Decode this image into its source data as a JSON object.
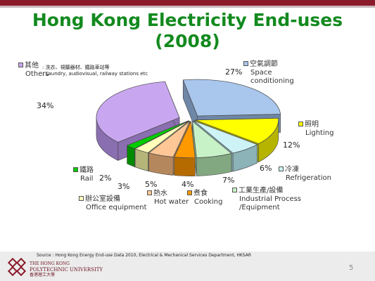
{
  "title_line1": "Hong Kong Electricity End-uses",
  "title_line2": "(2008)",
  "note_zh": ": 洗衣、視聽器材、鐵路車站等",
  "note_en": ": Laundry, audiovisual, railway stations etc",
  "source": "Source : Hong Kong Energy End-use Data 2010, Electrical & Mechanical Services Department, HKSAR",
  "logo": {
    "line1": "THE HONG KONG",
    "line2": "POLYTECHNIC UNIVERSITY",
    "line3": "香港理工大學"
  },
  "page_number": "5",
  "chart_data": {
    "type": "pie",
    "title": "Hong Kong Electricity End-uses (2008)",
    "slices": [
      {
        "key": "space",
        "zh": "空氣調節",
        "en": "Space conditioning",
        "en1": "Space",
        "en2": "conditioning",
        "value": 27,
        "label": "27%",
        "color": "#a9c6ec",
        "side": "#6f87a6"
      },
      {
        "key": "lighting",
        "zh": "照明",
        "en": "Lighting",
        "en1": "Lighting",
        "en2": "",
        "value": 12,
        "label": "12%",
        "color": "#ffff00",
        "side": "#b7b400"
      },
      {
        "key": "refrigeration",
        "zh": "冷凍",
        "en": "Refrigeration",
        "en1": "Refrigeration",
        "en2": "",
        "value": 6,
        "label": "6%",
        "color": "#cdf3f7",
        "side": "#8bb3b8"
      },
      {
        "key": "industrial",
        "zh": "工業生產/設備",
        "en": "Industrial Process /Equipment",
        "en1": "Industrial Process",
        "en2": "/Equipment",
        "value": 7,
        "label": "7%",
        "color": "#c7f2c7",
        "side": "#82a882"
      },
      {
        "key": "cooking",
        "zh": "煮食",
        "en": "Cooking",
        "en1": "Cooking",
        "en2": "",
        "value": 4,
        "label": "4%",
        "color": "#ff9900",
        "side": "#b56b00"
      },
      {
        "key": "hotwater",
        "zh": "熱水",
        "en": "Hot water",
        "en1": "Hot water",
        "en2": "",
        "value": 5,
        "label": "5%",
        "color": "#ffc795",
        "side": "#b5875c"
      },
      {
        "key": "office",
        "zh": "辦公室設備",
        "en": "Office equipment",
        "en1": "Office equipment",
        "en2": "",
        "value": 3,
        "label": "3%",
        "color": "#ffffbb",
        "side": "#b5b57a"
      },
      {
        "key": "rail",
        "zh": "鐵路",
        "en": "Rail",
        "en1": "Rail",
        "en2": "",
        "value": 2,
        "label": "2%",
        "color": "#00cc00",
        "side": "#008a00"
      },
      {
        "key": "others",
        "zh": "其他",
        "en": "Others",
        "en1": "Others",
        "en2": "",
        "value": 34,
        "label": "34%",
        "color": "#c9a7f0",
        "side": "#8a6fb0"
      }
    ]
  }
}
